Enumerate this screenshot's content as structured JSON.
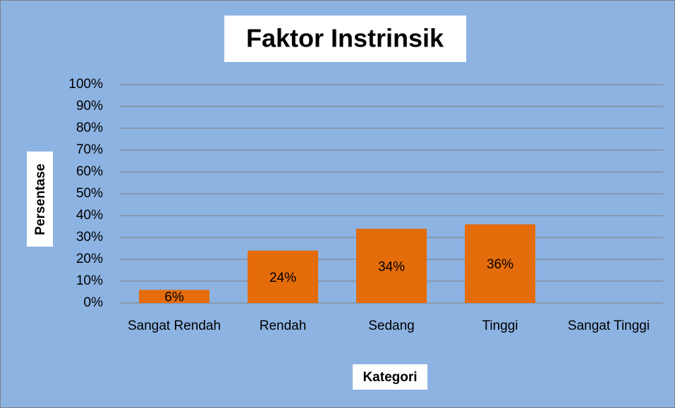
{
  "chart_data": {
    "type": "bar",
    "title": "Faktor Instrinsik",
    "y_label": "Persentase",
    "x_label": "Kategori",
    "categories": [
      "Sangat Rendah",
      "Rendah",
      "Sedang",
      "Tinggi",
      "Sangat Tinggi"
    ],
    "values": [
      6,
      24,
      34,
      36,
      null
    ],
    "value_labels": [
      "6%",
      "24%",
      "34%",
      "36%",
      null
    ],
    "color": "#e46c0a",
    "ylim": [
      0,
      100
    ],
    "yticks": [
      {
        "value": 0,
        "label": "0%"
      },
      {
        "value": 10,
        "label": "10%"
      },
      {
        "value": 20,
        "label": "20%"
      },
      {
        "value": 30,
        "label": "30%"
      },
      {
        "value": 40,
        "label": "40%"
      },
      {
        "value": 50,
        "label": "50%"
      },
      {
        "value": 60,
        "label": "60%"
      },
      {
        "value": 70,
        "label": "70%"
      },
      {
        "value": 80,
        "label": "80%"
      },
      {
        "value": 90,
        "label": "90%"
      },
      {
        "value": 100,
        "label": "100%"
      }
    ],
    "grid": true
  }
}
